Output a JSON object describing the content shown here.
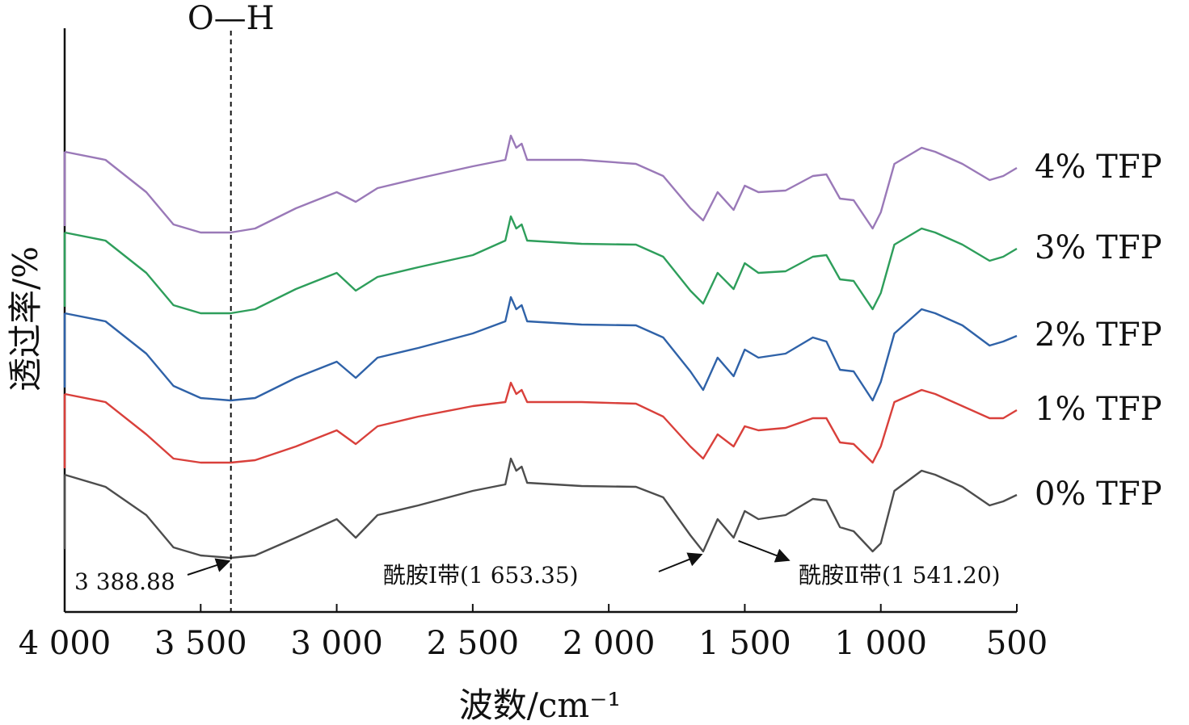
{
  "chart_data": {
    "type": "line",
    "xlabel": "波数/cm⁻¹",
    "ylabel": "透过率/%",
    "xlim": [
      4000,
      500
    ],
    "x_reversed": true,
    "x_ticks": [
      4000,
      3500,
      3000,
      2500,
      2000,
      1500,
      1000,
      500
    ],
    "x_tick_labels": [
      "4 000",
      "3 500",
      "3 000",
      "2 500",
      "2 000",
      "1 500",
      "1 000",
      "500"
    ],
    "y_tick_labels": false,
    "grid": false,
    "colors": {
      "0% TFP": "#4d4d4d",
      "1% TFP": "#d9403b",
      "2% TFP": "#2f62a8",
      "3% TFP": "#2e9e5b",
      "4% TFP": "#9a79b8",
      "axis": "#111111"
    },
    "peak_marker": {
      "label": "O—H",
      "x": 3388.88
    },
    "annotations": [
      {
        "text": "3 388.88",
        "x": 3388.88
      },
      {
        "text": "酰胺Ⅰ带(1 653.35)",
        "x": 1653.35
      },
      {
        "text": "酰胺Ⅱ带(1 541.20)",
        "x": 1541.2
      }
    ],
    "series": [
      {
        "name": "4% TFP",
        "offset": 4,
        "points": [
          [
            4000,
            0
          ],
          [
            3850,
            -0.1
          ],
          [
            3700,
            -0.5
          ],
          [
            3600,
            -0.9
          ],
          [
            3500,
            -1.0
          ],
          [
            3390,
            -1.0
          ],
          [
            3300,
            -0.95
          ],
          [
            3150,
            -0.7
          ],
          [
            3000,
            -0.5
          ],
          [
            2930,
            -0.62
          ],
          [
            2850,
            -0.45
          ],
          [
            2700,
            -0.33
          ],
          [
            2500,
            -0.18
          ],
          [
            2380,
            -0.1
          ],
          [
            2360,
            0.2
          ],
          [
            2340,
            0.05
          ],
          [
            2320,
            0.1
          ],
          [
            2300,
            -0.1
          ],
          [
            2100,
            -0.1
          ],
          [
            1900,
            -0.15
          ],
          [
            1800,
            -0.3
          ],
          [
            1700,
            -0.7
          ],
          [
            1653,
            -0.85
          ],
          [
            1600,
            -0.5
          ],
          [
            1541,
            -0.72
          ],
          [
            1500,
            -0.42
          ],
          [
            1450,
            -0.5
          ],
          [
            1350,
            -0.48
          ],
          [
            1250,
            -0.3
          ],
          [
            1200,
            -0.28
          ],
          [
            1150,
            -0.58
          ],
          [
            1100,
            -0.6
          ],
          [
            1030,
            -0.95
          ],
          [
            1000,
            -0.75
          ],
          [
            950,
            -0.15
          ],
          [
            850,
            0.05
          ],
          [
            800,
            0.0
          ],
          [
            700,
            -0.15
          ],
          [
            600,
            -0.35
          ],
          [
            550,
            -0.3
          ],
          [
            500,
            -0.2
          ]
        ]
      },
      {
        "name": "3% TFP",
        "offset": 3,
        "points": [
          [
            4000,
            0
          ],
          [
            3850,
            -0.1
          ],
          [
            3700,
            -0.5
          ],
          [
            3600,
            -0.9
          ],
          [
            3500,
            -1.0
          ],
          [
            3390,
            -1.0
          ],
          [
            3300,
            -0.95
          ],
          [
            3150,
            -0.7
          ],
          [
            3000,
            -0.5
          ],
          [
            2930,
            -0.72
          ],
          [
            2850,
            -0.55
          ],
          [
            2700,
            -0.43
          ],
          [
            2500,
            -0.28
          ],
          [
            2380,
            -0.1
          ],
          [
            2360,
            0.2
          ],
          [
            2340,
            0.05
          ],
          [
            2320,
            0.1
          ],
          [
            2300,
            -0.1
          ],
          [
            2100,
            -0.14
          ],
          [
            1900,
            -0.15
          ],
          [
            1800,
            -0.3
          ],
          [
            1700,
            -0.72
          ],
          [
            1653,
            -0.88
          ],
          [
            1600,
            -0.5
          ],
          [
            1541,
            -0.7
          ],
          [
            1500,
            -0.38
          ],
          [
            1450,
            -0.5
          ],
          [
            1350,
            -0.48
          ],
          [
            1250,
            -0.3
          ],
          [
            1200,
            -0.28
          ],
          [
            1150,
            -0.58
          ],
          [
            1100,
            -0.6
          ],
          [
            1030,
            -0.95
          ],
          [
            1000,
            -0.75
          ],
          [
            950,
            -0.15
          ],
          [
            850,
            0.05
          ],
          [
            800,
            0.0
          ],
          [
            700,
            -0.15
          ],
          [
            600,
            -0.35
          ],
          [
            550,
            -0.3
          ],
          [
            500,
            -0.2
          ]
        ]
      },
      {
        "name": "2% TFP",
        "offset": 2,
        "points": [
          [
            4000,
            0
          ],
          [
            3850,
            -0.1
          ],
          [
            3700,
            -0.5
          ],
          [
            3600,
            -0.9
          ],
          [
            3500,
            -1.05
          ],
          [
            3390,
            -1.08
          ],
          [
            3300,
            -1.05
          ],
          [
            3150,
            -0.8
          ],
          [
            3000,
            -0.6
          ],
          [
            2930,
            -0.8
          ],
          [
            2850,
            -0.55
          ],
          [
            2700,
            -0.43
          ],
          [
            2500,
            -0.25
          ],
          [
            2380,
            -0.1
          ],
          [
            2360,
            0.2
          ],
          [
            2340,
            0.05
          ],
          [
            2320,
            0.1
          ],
          [
            2300,
            -0.1
          ],
          [
            2100,
            -0.14
          ],
          [
            1900,
            -0.15
          ],
          [
            1800,
            -0.3
          ],
          [
            1700,
            -0.72
          ],
          [
            1653,
            -0.95
          ],
          [
            1600,
            -0.55
          ],
          [
            1541,
            -0.78
          ],
          [
            1500,
            -0.45
          ],
          [
            1450,
            -0.55
          ],
          [
            1350,
            -0.5
          ],
          [
            1250,
            -0.3
          ],
          [
            1200,
            -0.35
          ],
          [
            1150,
            -0.7
          ],
          [
            1100,
            -0.72
          ],
          [
            1030,
            -1.08
          ],
          [
            1000,
            -0.85
          ],
          [
            950,
            -0.25
          ],
          [
            850,
            0.05
          ],
          [
            800,
            0.0
          ],
          [
            700,
            -0.15
          ],
          [
            600,
            -0.4
          ],
          [
            550,
            -0.35
          ],
          [
            500,
            -0.28
          ]
        ]
      },
      {
        "name": "1% TFP",
        "offset": 1,
        "points": [
          [
            4000,
            0
          ],
          [
            3850,
            -0.1
          ],
          [
            3700,
            -0.5
          ],
          [
            3600,
            -0.8
          ],
          [
            3500,
            -0.85
          ],
          [
            3390,
            -0.85
          ],
          [
            3300,
            -0.82
          ],
          [
            3150,
            -0.65
          ],
          [
            3000,
            -0.45
          ],
          [
            2930,
            -0.62
          ],
          [
            2850,
            -0.4
          ],
          [
            2700,
            -0.28
          ],
          [
            2500,
            -0.15
          ],
          [
            2380,
            -0.1
          ],
          [
            2360,
            0.14
          ],
          [
            2340,
            0.0
          ],
          [
            2320,
            0.05
          ],
          [
            2300,
            -0.1
          ],
          [
            2100,
            -0.1
          ],
          [
            1900,
            -0.12
          ],
          [
            1800,
            -0.28
          ],
          [
            1700,
            -0.65
          ],
          [
            1653,
            -0.8
          ],
          [
            1600,
            -0.5
          ],
          [
            1541,
            -0.65
          ],
          [
            1500,
            -0.4
          ],
          [
            1450,
            -0.45
          ],
          [
            1350,
            -0.42
          ],
          [
            1250,
            -0.3
          ],
          [
            1200,
            -0.3
          ],
          [
            1150,
            -0.6
          ],
          [
            1100,
            -0.62
          ],
          [
            1030,
            -0.85
          ],
          [
            1000,
            -0.65
          ],
          [
            950,
            -0.1
          ],
          [
            850,
            0.05
          ],
          [
            800,
            0.0
          ],
          [
            700,
            -0.15
          ],
          [
            600,
            -0.3
          ],
          [
            550,
            -0.3
          ],
          [
            500,
            -0.2
          ]
        ]
      },
      {
        "name": "0% TFP",
        "offset": 0,
        "points": [
          [
            4000,
            0
          ],
          [
            3850,
            -0.15
          ],
          [
            3700,
            -0.5
          ],
          [
            3600,
            -0.9
          ],
          [
            3500,
            -1.0
          ],
          [
            3390,
            -1.03
          ],
          [
            3300,
            -1.0
          ],
          [
            3150,
            -0.78
          ],
          [
            3000,
            -0.55
          ],
          [
            2930,
            -0.78
          ],
          [
            2850,
            -0.5
          ],
          [
            2700,
            -0.38
          ],
          [
            2500,
            -0.2
          ],
          [
            2380,
            -0.12
          ],
          [
            2360,
            0.2
          ],
          [
            2340,
            0.05
          ],
          [
            2320,
            0.1
          ],
          [
            2300,
            -0.1
          ],
          [
            2100,
            -0.14
          ],
          [
            1900,
            -0.15
          ],
          [
            1800,
            -0.28
          ],
          [
            1700,
            -0.75
          ],
          [
            1653,
            -0.95
          ],
          [
            1600,
            -0.55
          ],
          [
            1541,
            -0.78
          ],
          [
            1500,
            -0.45
          ],
          [
            1450,
            -0.55
          ],
          [
            1350,
            -0.5
          ],
          [
            1250,
            -0.3
          ],
          [
            1200,
            -0.32
          ],
          [
            1150,
            -0.65
          ],
          [
            1100,
            -0.7
          ],
          [
            1030,
            -0.95
          ],
          [
            1000,
            -0.85
          ],
          [
            950,
            -0.2
          ],
          [
            850,
            0.05
          ],
          [
            800,
            0.0
          ],
          [
            700,
            -0.15
          ],
          [
            600,
            -0.38
          ],
          [
            550,
            -0.33
          ],
          [
            500,
            -0.25
          ]
        ]
      }
    ]
  }
}
